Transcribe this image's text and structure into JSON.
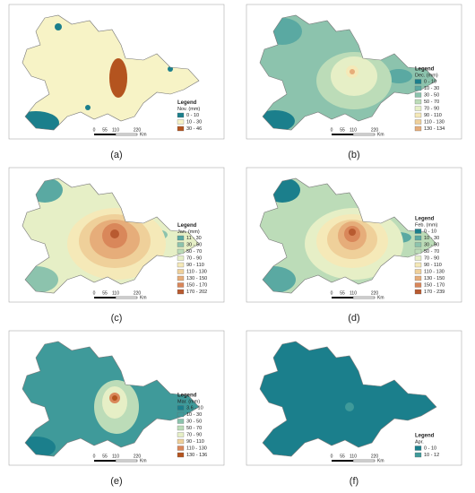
{
  "panels": [
    {
      "label": "(a)",
      "legend_title": "Legend",
      "legend_subtitle": "Nov. (mm)",
      "scale": [
        "0",
        "55",
        "110",
        "220",
        "Km"
      ],
      "legend_items": [
        {
          "label": "0 - 10",
          "color": "#1b7f8c"
        },
        {
          "label": "10 - 30",
          "color": "#f7f3c6"
        },
        {
          "label": "30 - 46",
          "color": "#b4541f"
        }
      ]
    },
    {
      "label": "(b)",
      "legend_title": "Legend",
      "legend_subtitle": "Dec. (mm)",
      "scale": [
        "0",
        "55",
        "110",
        "220",
        "Km"
      ],
      "legend_items": [
        {
          "label": "0 - 10",
          "color": "#1b7f8c"
        },
        {
          "label": "10 - 30",
          "color": "#5aa9a2"
        },
        {
          "label": "30 - 50",
          "color": "#8cc3ad"
        },
        {
          "label": "50 - 70",
          "color": "#bcdcb8"
        },
        {
          "label": "70 - 90",
          "color": "#e6efc6"
        },
        {
          "label": "90 - 110",
          "color": "#f5e9b8"
        },
        {
          "label": "110 - 130",
          "color": "#efd09a"
        },
        {
          "label": "130 - 134",
          "color": "#e6ad7a"
        }
      ]
    },
    {
      "label": "(c)",
      "legend_title": "Legend",
      "legend_subtitle": "Jan.  (mm)",
      "scale": [
        "0",
        "55",
        "110",
        "220",
        "Km"
      ],
      "legend_items": [
        {
          "label": "11 - 30",
          "color": "#5aa9a2"
        },
        {
          "label": "30 - 50",
          "color": "#8cc3ad"
        },
        {
          "label": "50 - 70",
          "color": "#bcdcb8"
        },
        {
          "label": "70 - 90",
          "color": "#e6efc6"
        },
        {
          "label": "90 - 110",
          "color": "#f5e9b8"
        },
        {
          "label": "110 - 130",
          "color": "#efd09a"
        },
        {
          "label": "130 - 150",
          "color": "#e6ad7a"
        },
        {
          "label": "150 - 170",
          "color": "#d9875a"
        },
        {
          "label": "170 - 202",
          "color": "#b85a30"
        }
      ]
    },
    {
      "label": "(d)",
      "legend_title": "Legend",
      "legend_subtitle": "Feb. (mm)",
      "scale": [
        "0",
        "55",
        "110",
        "220",
        "Km"
      ],
      "legend_items": [
        {
          "label": "0 - 10",
          "color": "#1b7f8c"
        },
        {
          "label": "10 - 30",
          "color": "#5aa9a2"
        },
        {
          "label": "30 - 50",
          "color": "#8cc3ad"
        },
        {
          "label": "50 - 70",
          "color": "#bcdcb8"
        },
        {
          "label": "70 - 90",
          "color": "#e6efc6"
        },
        {
          "label": "90 - 110",
          "color": "#f5e9b8"
        },
        {
          "label": "110 - 130",
          "color": "#efd09a"
        },
        {
          "label": "130 - 150",
          "color": "#e6ad7a"
        },
        {
          "label": "150 - 170",
          "color": "#d9875a"
        },
        {
          "label": "170 - 239",
          "color": "#b85a30"
        }
      ]
    },
    {
      "label": "(e)",
      "legend_title": "Legend",
      "legend_subtitle": "Mar. (mm)",
      "scale": [
        "0",
        "55",
        "110",
        "220",
        "Km"
      ],
      "legend_items": [
        {
          "label": "3.6 - 10",
          "color": "#1b7f8c"
        },
        {
          "label": "10 - 30",
          "color": "#3f9a9a"
        },
        {
          "label": "30 - 50",
          "color": "#8cc3ad"
        },
        {
          "label": "50 - 70",
          "color": "#bcdcb8"
        },
        {
          "label": "70 - 90",
          "color": "#e6efc6"
        },
        {
          "label": "90 - 110",
          "color": "#efd09a"
        },
        {
          "label": "110 - 130",
          "color": "#d9875a"
        },
        {
          "label": "130 - 136",
          "color": "#b4541f"
        }
      ]
    },
    {
      "label": "(f)",
      "legend_title": "Legend",
      "legend_subtitle": "Apr.",
      "scale": [
        "0",
        "55",
        "110",
        "220",
        "Km"
      ],
      "legend_items": [
        {
          "label": "0 - 10",
          "color": "#1b7f8c"
        },
        {
          "label": "10 - 12",
          "color": "#3f9a9a"
        }
      ]
    }
  ]
}
